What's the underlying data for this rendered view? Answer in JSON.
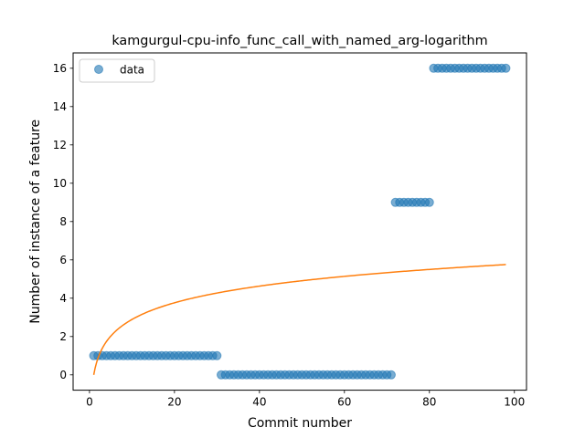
{
  "chart_data": {
    "type": "scatter",
    "title": "kamgurgul-cpu-info_func_call_with_named_arg-logarithm",
    "xlabel": "Commit number",
    "ylabel": "Number of instance of a feature",
    "xlim": [
      -3.85,
      102.85
    ],
    "ylim": [
      -0.8,
      16.8
    ],
    "x_ticks": [
      0,
      20,
      40,
      60,
      80,
      100
    ],
    "y_ticks": [
      0,
      2,
      4,
      6,
      8,
      10,
      12,
      14,
      16
    ],
    "grid": false,
    "legend_position": "upper left",
    "series": [
      {
        "name": "data",
        "kind": "scatter",
        "color": "#1f77b4",
        "points": [
          [
            1,
            1
          ],
          [
            2,
            1
          ],
          [
            3,
            1
          ],
          [
            4,
            1
          ],
          [
            5,
            1
          ],
          [
            6,
            1
          ],
          [
            7,
            1
          ],
          [
            8,
            1
          ],
          [
            9,
            1
          ],
          [
            10,
            1
          ],
          [
            11,
            1
          ],
          [
            12,
            1
          ],
          [
            13,
            1
          ],
          [
            14,
            1
          ],
          [
            15,
            1
          ],
          [
            16,
            1
          ],
          [
            17,
            1
          ],
          [
            18,
            1
          ],
          [
            19,
            1
          ],
          [
            20,
            1
          ],
          [
            21,
            1
          ],
          [
            22,
            1
          ],
          [
            23,
            1
          ],
          [
            24,
            1
          ],
          [
            25,
            1
          ],
          [
            26,
            1
          ],
          [
            27,
            1
          ],
          [
            28,
            1
          ],
          [
            29,
            1
          ],
          [
            30,
            1
          ],
          [
            31,
            0
          ],
          [
            32,
            0
          ],
          [
            33,
            0
          ],
          [
            34,
            0
          ],
          [
            35,
            0
          ],
          [
            36,
            0
          ],
          [
            37,
            0
          ],
          [
            38,
            0
          ],
          [
            39,
            0
          ],
          [
            40,
            0
          ],
          [
            41,
            0
          ],
          [
            42,
            0
          ],
          [
            43,
            0
          ],
          [
            44,
            0
          ],
          [
            45,
            0
          ],
          [
            46,
            0
          ],
          [
            47,
            0
          ],
          [
            48,
            0
          ],
          [
            49,
            0
          ],
          [
            50,
            0
          ],
          [
            51,
            0
          ],
          [
            52,
            0
          ],
          [
            53,
            0
          ],
          [
            54,
            0
          ],
          [
            55,
            0
          ],
          [
            56,
            0
          ],
          [
            57,
            0
          ],
          [
            58,
            0
          ],
          [
            59,
            0
          ],
          [
            60,
            0
          ],
          [
            61,
            0
          ],
          [
            62,
            0
          ],
          [
            63,
            0
          ],
          [
            64,
            0
          ],
          [
            65,
            0
          ],
          [
            66,
            0
          ],
          [
            67,
            0
          ],
          [
            68,
            0
          ],
          [
            69,
            0
          ],
          [
            70,
            0
          ],
          [
            71,
            0
          ],
          [
            72,
            9
          ],
          [
            73,
            9
          ],
          [
            74,
            9
          ],
          [
            75,
            9
          ],
          [
            76,
            9
          ],
          [
            77,
            9
          ],
          [
            78,
            9
          ],
          [
            79,
            9
          ],
          [
            80,
            9
          ],
          [
            81,
            16
          ],
          [
            82,
            16
          ],
          [
            83,
            16
          ],
          [
            84,
            16
          ],
          [
            85,
            16
          ],
          [
            86,
            16
          ],
          [
            87,
            16
          ],
          [
            88,
            16
          ],
          [
            89,
            16
          ],
          [
            90,
            16
          ],
          [
            91,
            16
          ],
          [
            92,
            16
          ],
          [
            93,
            16
          ],
          [
            94,
            16
          ],
          [
            95,
            16
          ],
          [
            96,
            16
          ],
          [
            97,
            16
          ],
          [
            98,
            16
          ]
        ]
      },
      {
        "kind": "line",
        "color": "#ff7f0e",
        "fit": "logarithmic",
        "formula": "y = a + b*ln(x)",
        "a": 0.0,
        "b": 1.2553,
        "x_range": [
          1,
          98
        ]
      }
    ]
  }
}
